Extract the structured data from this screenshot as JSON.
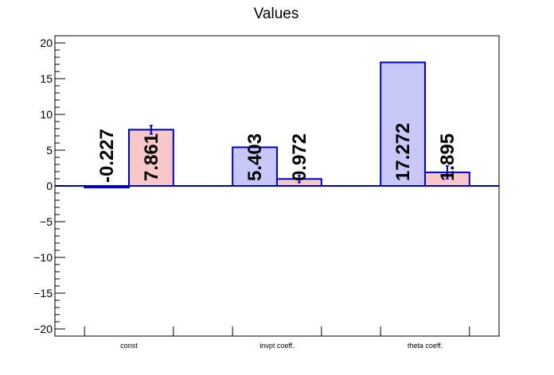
{
  "chart_data": {
    "type": "bar",
    "title": "Values",
    "categories": [
      "const",
      "invpt coeff.",
      "theta coeff."
    ],
    "ylim": [
      -21,
      21
    ],
    "yticks": [
      -20,
      -15,
      -10,
      -5,
      0,
      5,
      10,
      15,
      20
    ],
    "ytick_labels": [
      "−20",
      "−15",
      "−10",
      "−5",
      "0",
      "5",
      "10",
      "15",
      "20"
    ],
    "grid": false,
    "series": [
      {
        "color": "#c8c8f8",
        "edge_color": "#0000cc",
        "values": [
          -0.227,
          5.403,
          17.272
        ],
        "errors": [
          0,
          0,
          0
        ],
        "value_labels": [
          "-0.227",
          "5.403",
          "17.272"
        ]
      },
      {
        "color": "#f8c8c8",
        "edge_color": "#0000cc",
        "values": [
          7.861,
          0.972,
          1.895
        ],
        "errors": [
          0.6,
          0.5,
          0.9
        ],
        "value_labels": [
          "7.861",
          "0.972",
          "1.895"
        ]
      }
    ]
  }
}
